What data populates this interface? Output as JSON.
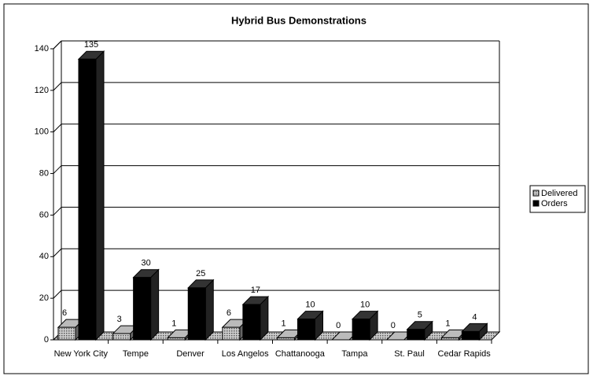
{
  "chart_data": {
    "type": "bar3d",
    "title": "Hybrid Bus Demonstrations",
    "categories": [
      "New York City",
      "Tempe",
      "Denver",
      "Los Angelos",
      "Chattanooga",
      "Tampa",
      "St. Paul",
      "Cedar Rapids"
    ],
    "series": [
      {
        "name": "Delivered",
        "color": "#8c8c8c",
        "values": [
          6,
          3,
          1,
          6,
          1,
          0,
          0,
          1
        ]
      },
      {
        "name": "Orders",
        "color": "#000000",
        "values": [
          135,
          30,
          25,
          17,
          10,
          10,
          5,
          4
        ]
      }
    ],
    "ylim": [
      0,
      140
    ],
    "yticks": [
      0,
      20,
      40,
      60,
      80,
      100,
      120,
      140
    ],
    "grid": true,
    "legend": "right"
  }
}
